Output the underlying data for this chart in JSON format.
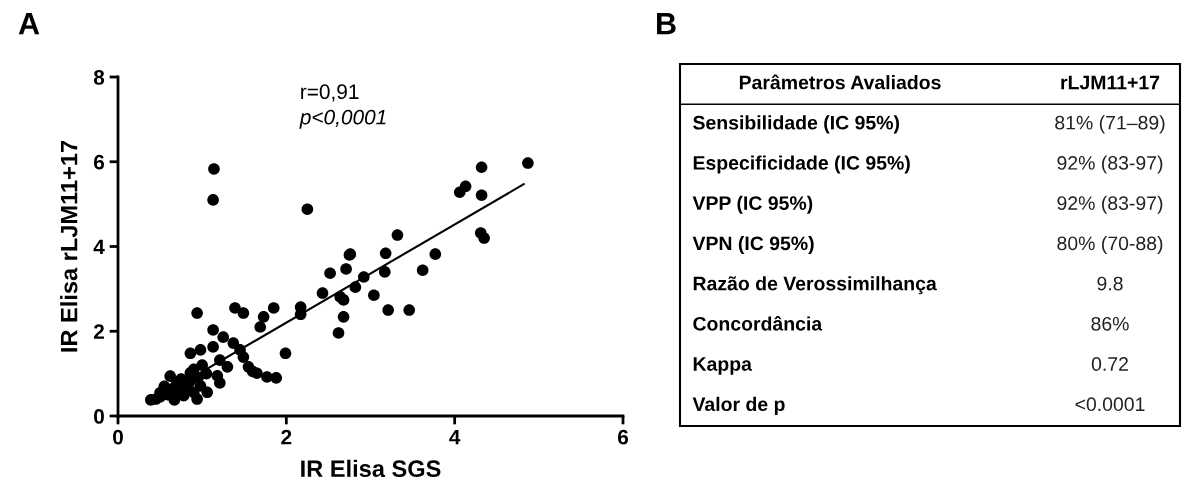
{
  "chart_data": [
    {
      "type": "scatter",
      "title": "A",
      "xlabel": "IR Elisa SGS",
      "ylabel": "IR Elisa rLJM11+17",
      "xlim": [
        0,
        6
      ],
      "xticks": [
        0,
        2,
        4,
        6
      ],
      "ylim": [
        0,
        8
      ],
      "yticks": [
        0,
        2,
        4,
        6,
        8
      ],
      "grid": false,
      "marker": "circle",
      "annotations": [
        "r=0,91",
        "p<0,0001"
      ],
      "series": [
        {
          "type": "scatter",
          "color": "#000000",
          "x": [
            1.14,
            1.13,
            2.25,
            0.94,
            2.75,
            2.62,
            1.99,
            1.88,
            4.87,
            4.32,
            4.13,
            4.06,
            4.32,
            4.31,
            4.35,
            3.32,
            3.77,
            3.62,
            3.18,
            3.17,
            3.04,
            3.21,
            3.46,
            2.76,
            2.71,
            2.92,
            2.82,
            2.68,
            2.68,
            2.52,
            2.43,
            2.64,
            2.17,
            2.17,
            1.85,
            1.73,
            1.69,
            1.39,
            1.49,
            1.13,
            1.25,
            1.37,
            1.45,
            1.49,
            1.55,
            1.65,
            1.77,
            1.6,
            0.86,
            0.98,
            1.13,
            1.21,
            1.3,
            1.21,
            1.18,
            0.39,
            0.5,
            0.7,
            0.78,
            0.9,
            0.62,
            0.75,
            0.86,
            0.98,
            1.06,
            0.94,
            0.67,
            0.45,
            0.6,
            0.65,
            0.72,
            0.8,
            0.85,
            0.55,
            0.5,
            0.95,
            1.0,
            1.05,
            0.9
          ],
          "values": [
            5.83,
            5.1,
            4.88,
            2.43,
            3.8,
            1.96,
            1.48,
            0.9,
            5.97,
            5.87,
            5.42,
            5.28,
            5.21,
            4.32,
            4.2,
            4.27,
            3.82,
            3.44,
            3.84,
            3.4,
            2.85,
            2.5,
            2.5,
            3.82,
            3.47,
            3.28,
            3.04,
            2.74,
            2.34,
            3.37,
            2.9,
            2.81,
            2.57,
            2.4,
            2.55,
            2.34,
            2.1,
            2.55,
            2.43,
            2.03,
            1.86,
            1.72,
            1.56,
            1.39,
            1.16,
            1.01,
            0.92,
            1.05,
            1.48,
            1.56,
            1.63,
            1.32,
            1.16,
            0.78,
            0.95,
            0.38,
            0.45,
            0.79,
            0.48,
            0.56,
            0.94,
            0.87,
            1.02,
            0.71,
            0.56,
            0.4,
            0.38,
            0.4,
            0.5,
            0.65,
            0.6,
            0.7,
            0.8,
            0.7,
            0.55,
            0.9,
            1.2,
            1.0,
            1.1
          ]
        },
        {
          "type": "line",
          "color": "#000000",
          "x": [
            0.4,
            4.82
          ],
          "values": [
            0.35,
            5.47
          ],
          "line_style": "solid",
          "marker": "none"
        }
      ]
    },
    {
      "type": "other",
      "title": "B",
      "categories": [
        "Parâmetros Avaliados",
        "rLJM11+17"
      ],
      "y_categories": [
        "Sensibilidade (IC 95%)",
        "Especificidade (IC 95%)",
        "VPP (IC 95%)",
        "VPN (IC 95%)",
        "Razão de Verossimilhança",
        "Concordância",
        "Kappa",
        "Valor de p"
      ],
      "cell_labels": [
        [
          "81% (71–89)"
        ],
        [
          "92% (83-97)"
        ],
        [
          "92% (83-97)"
        ],
        [
          "80% (70-88)"
        ],
        [
          "9.8"
        ],
        [
          "86%"
        ],
        [
          "0.72"
        ],
        [
          "<0.0001"
        ]
      ]
    }
  ]
}
